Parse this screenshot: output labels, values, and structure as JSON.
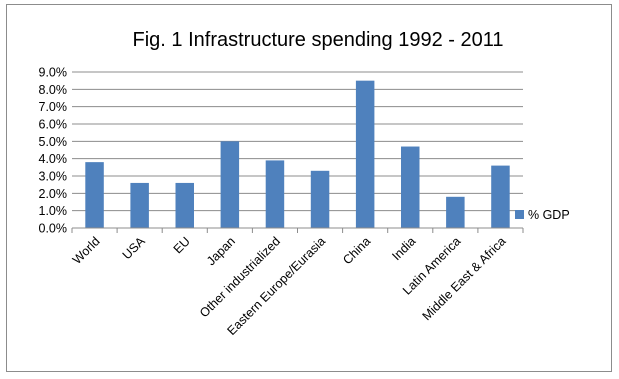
{
  "chart_data": {
    "type": "bar",
    "title": "Fig. 1 Infrastructure spending 1992 - 2011",
    "xlabel": "",
    "ylabel": "",
    "categories": [
      "World",
      "USA",
      "EU",
      "Japan",
      "Other industrialized",
      "Eastern Europe/Eurasia",
      "China",
      "India",
      "Latin America",
      "Middle East & Africa"
    ],
    "series": [
      {
        "name": "% GDP",
        "values": [
          3.8,
          2.6,
          2.6,
          5.0,
          3.9,
          3.3,
          8.5,
          4.7,
          1.8,
          3.6
        ]
      }
    ],
    "ylim": [
      0,
      9
    ],
    "ytick_labels": [
      "0.0%",
      "1.0%",
      "2.0%",
      "3.0%",
      "4.0%",
      "5.0%",
      "6.0%",
      "7.0%",
      "8.0%",
      "9.0%"
    ],
    "grid": true,
    "legend_position": "right",
    "bar_color": "#4f81bd"
  }
}
